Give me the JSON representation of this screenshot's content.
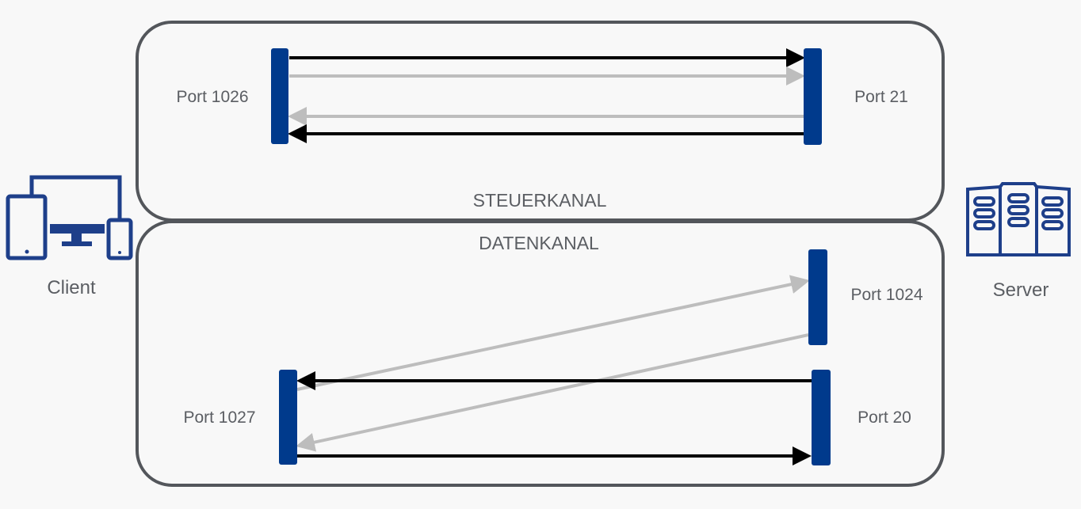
{
  "client": {
    "label": "Client",
    "icon": "client-devices-icon"
  },
  "server": {
    "label": "Server",
    "icon": "server-rack-icon"
  },
  "steuerkanal": {
    "title": "STEUERKANAL",
    "client_port": "Port 1026",
    "server_port": "Port 21"
  },
  "datenkanal": {
    "title": "DATENKANAL",
    "client_port": "Port 1027",
    "server_port_top": "Port 1024",
    "server_port_bottom": "Port 20"
  },
  "colors": {
    "port_bar": "#003a8c",
    "icon": "#1e3f8a",
    "arrow_dark": "#000000",
    "arrow_light": "#bdbdbd",
    "box_border": "#53565b",
    "text": "#5b5e63",
    "background": "#f8f8f8"
  }
}
